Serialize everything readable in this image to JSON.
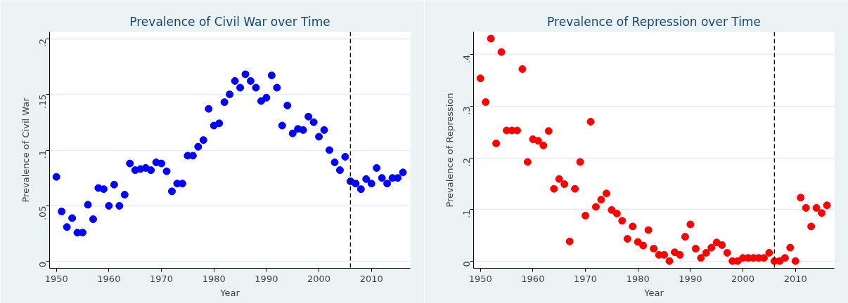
{
  "chart_data": [
    {
      "type": "scatter",
      "title": "Prevalence of Civil War over Time",
      "xlabel": "Year",
      "ylabel": "Prevalence of Civil War",
      "x": [
        1950,
        1951,
        1952,
        1953,
        1954,
        1955,
        1956,
        1957,
        1958,
        1959,
        1960,
        1961,
        1962,
        1963,
        1964,
        1965,
        1966,
        1967,
        1968,
        1969,
        1970,
        1971,
        1972,
        1973,
        1974,
        1975,
        1976,
        1977,
        1978,
        1979,
        1980,
        1981,
        1982,
        1983,
        1984,
        1985,
        1986,
        1987,
        1988,
        1989,
        1990,
        1991,
        1992,
        1993,
        1994,
        1995,
        1996,
        1997,
        1998,
        1999,
        2000,
        2001,
        2002,
        2003,
        2004,
        2005,
        2006,
        2007,
        2008,
        2009,
        2010,
        2011,
        2012,
        2013,
        2014,
        2015,
        2016
      ],
      "series": [
        {
          "color": "#0000ff",
          "values": [
            0.076,
            0.045,
            0.031,
            0.039,
            0.026,
            0.026,
            0.051,
            0.038,
            0.066,
            0.065,
            0.05,
            0.069,
            0.05,
            0.06,
            0.088,
            0.082,
            0.083,
            0.084,
            0.082,
            0.089,
            0.088,
            0.081,
            0.063,
            0.07,
            0.07,
            0.095,
            0.095,
            0.103,
            0.109,
            0.137,
            0.122,
            0.124,
            0.143,
            0.15,
            0.162,
            0.156,
            0.168,
            0.162,
            0.156,
            0.144,
            0.147,
            0.167,
            0.156,
            0.122,
            0.14,
            0.115,
            0.119,
            0.118,
            0.13,
            0.125,
            0.112,
            0.118,
            0.1,
            0.089,
            0.082,
            0.094,
            0.072,
            0.07,
            0.065,
            0.074,
            0.07,
            0.084,
            0.075,
            0.07,
            0.075,
            0.075,
            0.08
          ]
        }
      ],
      "xlim": [
        1948.7,
        2017.4
      ],
      "xticks": [
        1950,
        1960,
        1970,
        1980,
        1990,
        2000,
        2010
      ],
      "ylim": [
        -0.006,
        0.206
      ],
      "yticks": [
        {
          "value": 0,
          "label": "0"
        },
        {
          "value": 0.05,
          "label": ".05"
        },
        {
          "value": 0.1,
          "label": ".1"
        },
        {
          "value": 0.15,
          "label": ".15"
        },
        {
          "value": 0.2,
          "label": ".2"
        }
      ],
      "ref_lines": [
        {
          "axis": "x",
          "value": 2006,
          "color": "#000000",
          "line_style": "dashed"
        }
      ],
      "grid": "y",
      "marker": "circle"
    },
    {
      "type": "scatter",
      "title": "Prevalence of Repression over Time",
      "xlabel": "Year",
      "ylabel": "Prevalence of Repression",
      "x": [
        1950,
        1951,
        1952,
        1953,
        1954,
        1955,
        1956,
        1957,
        1958,
        1959,
        1960,
        1961,
        1962,
        1963,
        1964,
        1965,
        1966,
        1967,
        1968,
        1969,
        1970,
        1971,
        1972,
        1973,
        1974,
        1975,
        1976,
        1977,
        1978,
        1979,
        1980,
        1981,
        1982,
        1983,
        1984,
        1985,
        1986,
        1987,
        1988,
        1989,
        1990,
        1991,
        1992,
        1993,
        1994,
        1995,
        1996,
        1997,
        1998,
        1999,
        2000,
        2001,
        2002,
        2003,
        2004,
        2005,
        2006,
        2007,
        2008,
        2009,
        2010,
        2011,
        2012,
        2013,
        2014,
        2015,
        2016
      ],
      "series": [
        {
          "color": "#ff0000",
          "values": [
            0.354,
            0.308,
            0.431,
            0.228,
            0.405,
            0.253,
            0.253,
            0.253,
            0.372,
            0.192,
            0.236,
            0.233,
            0.224,
            0.252,
            0.14,
            0.159,
            0.149,
            0.038,
            0.14,
            0.192,
            0.088,
            0.27,
            0.105,
            0.119,
            0.131,
            0.099,
            0.092,
            0.078,
            0.043,
            0.067,
            0.037,
            0.03,
            0.06,
            0.024,
            0.012,
            0.012,
            0.0,
            0.017,
            0.012,
            0.047,
            0.071,
            0.024,
            0.006,
            0.016,
            0.026,
            0.036,
            0.031,
            0.016,
            0.0,
            0.0,
            0.006,
            0.006,
            0.006,
            0.006,
            0.006,
            0.016,
            0.0,
            0.0,
            0.006,
            0.026,
            0.0,
            0.123,
            0.103,
            0.067,
            0.103,
            0.093,
            0.108
          ]
        }
      ],
      "xlim": [
        1948.7,
        2017.4
      ],
      "xticks": [
        1950,
        1960,
        1970,
        1980,
        1990,
        2000,
        2010
      ],
      "ylim": [
        -0.014,
        0.444
      ],
      "yticks": [
        {
          "value": 0,
          "label": "0"
        },
        {
          "value": 0.1,
          "label": ".1"
        },
        {
          "value": 0.2,
          "label": ".2"
        },
        {
          "value": 0.3,
          "label": ".3"
        },
        {
          "value": 0.4,
          "label": ".4"
        }
      ],
      "ref_lines": [
        {
          "axis": "x",
          "value": 2006,
          "color": "#000000",
          "line_style": "dashed"
        }
      ],
      "grid": "y",
      "marker": "circle"
    }
  ]
}
